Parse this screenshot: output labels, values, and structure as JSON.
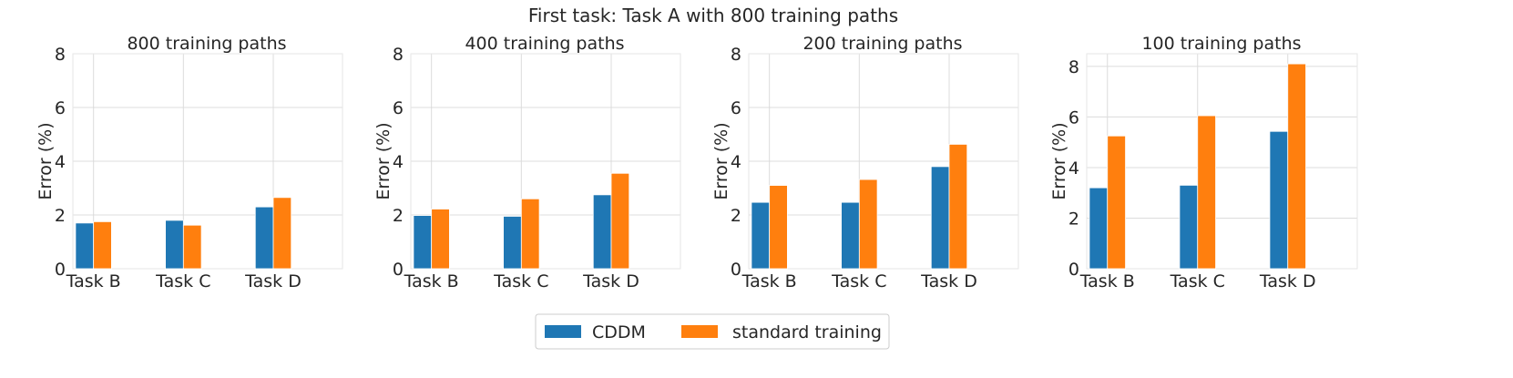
{
  "figure_title": "First task: Task A with 800 training paths",
  "colors": {
    "cddm": "#1f77b4",
    "standard": "#ff7f0e",
    "grid": "#dcdcdc",
    "text": "#262626"
  },
  "legend": {
    "items": [
      "CDDM",
      "standard training"
    ],
    "placement": "bottom-center"
  },
  "chart_data": [
    {
      "type": "bar",
      "title": "800 training paths",
      "ylabel": "Error (%)",
      "categories": [
        "Task B",
        "Task C",
        "Task D"
      ],
      "ylim": [
        0,
        8
      ],
      "yticks": [
        "0",
        "2",
        "4",
        "6",
        "8"
      ],
      "series": [
        {
          "name": "CDDM",
          "values": [
            1.7,
            1.8,
            2.3
          ]
        },
        {
          "name": "standard training",
          "values": [
            1.75,
            1.62,
            2.65
          ]
        }
      ]
    },
    {
      "type": "bar",
      "title": "400 training paths",
      "ylabel": "Error (%)",
      "categories": [
        "Task B",
        "Task C",
        "Task D"
      ],
      "ylim": [
        0,
        8
      ],
      "yticks": [
        "0",
        "2",
        "4",
        "6",
        "8"
      ],
      "series": [
        {
          "name": "CDDM",
          "values": [
            1.98,
            1.95,
            2.75
          ]
        },
        {
          "name": "standard training",
          "values": [
            2.22,
            2.6,
            3.55
          ]
        }
      ]
    },
    {
      "type": "bar",
      "title": "200 training paths",
      "ylabel": "Error (%)",
      "categories": [
        "Task B",
        "Task C",
        "Task D"
      ],
      "ylim": [
        0,
        8
      ],
      "yticks": [
        "0",
        "2",
        "4",
        "6",
        "8"
      ],
      "series": [
        {
          "name": "CDDM",
          "values": [
            2.47,
            2.47,
            3.8
          ]
        },
        {
          "name": "standard training",
          "values": [
            3.1,
            3.32,
            4.63
          ]
        }
      ]
    },
    {
      "type": "bar",
      "title": "100 training paths",
      "ylabel": "Error (%)",
      "categories": [
        "Task B",
        "Task C",
        "Task D"
      ],
      "ylim": [
        0,
        8.5
      ],
      "yticks": [
        "0",
        "2",
        "4",
        "6",
        "8"
      ],
      "series": [
        {
          "name": "CDDM",
          "values": [
            3.2,
            3.3,
            5.43
          ]
        },
        {
          "name": "standard training",
          "values": [
            5.25,
            6.05,
            8.1
          ]
        }
      ]
    }
  ]
}
